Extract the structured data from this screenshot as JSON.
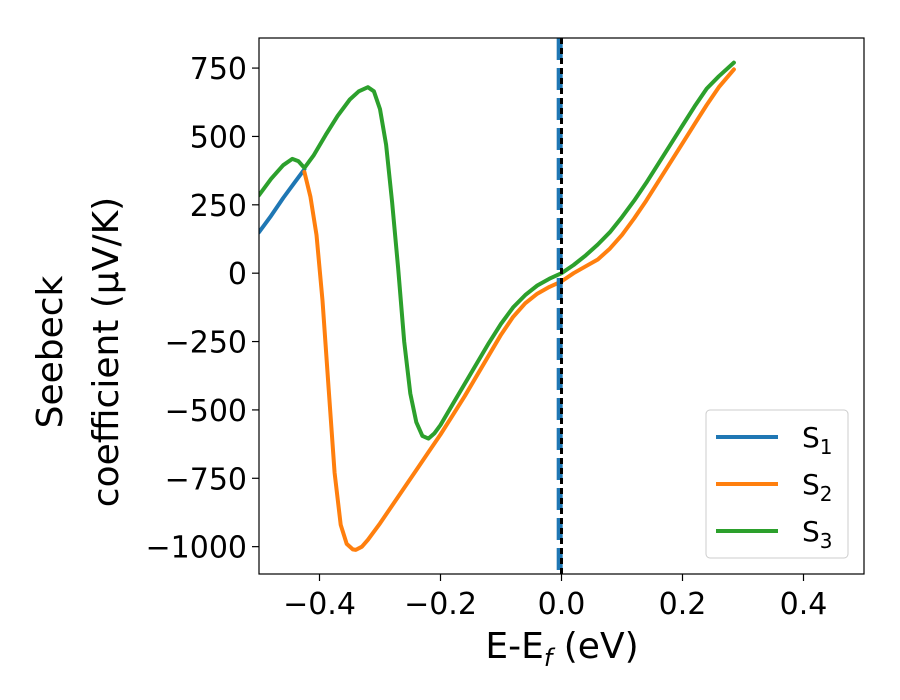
{
  "chart_data": {
    "type": "line",
    "title": "",
    "xlabel": {
      "main": "E-E",
      "sub": "f",
      "tail": " (eV)"
    },
    "ylabel": {
      "line1": "Seebeck",
      "line2": "coefficient  (μV/K)"
    },
    "xlim": [
      -0.5,
      0.5
    ],
    "ylim": [
      -1100,
      860
    ],
    "xticks": [
      -0.4,
      -0.2,
      0.0,
      0.2,
      0.4
    ],
    "xtick_labels": [
      "−0.4",
      "−0.2",
      "0.0",
      "0.2",
      "0.4"
    ],
    "yticks": [
      750,
      500,
      250,
      0,
      -250,
      -500,
      -750,
      -1000
    ],
    "ytick_labels": [
      "750",
      "500",
      "250",
      "0",
      "−250",
      "−500",
      "−750",
      "−1000"
    ],
    "grid": false,
    "legend_position": "lower-right",
    "vertical_lines": [
      {
        "x": 0.0,
        "color": "#000000",
        "style": "dotted"
      },
      {
        "x": -0.003,
        "color": "#1f77b4",
        "style": "dashed"
      }
    ],
    "series": [
      {
        "name": "S",
        "sub": "1",
        "color": "#1f77b4",
        "x": [
          -0.5,
          -0.48,
          -0.46,
          -0.44,
          -0.425
        ],
        "y": [
          150,
          210,
          275,
          335,
          380
        ]
      },
      {
        "name": "S",
        "sub": "2",
        "color": "#ff7f0e",
        "x": [
          -0.425,
          -0.415,
          -0.405,
          -0.395,
          -0.385,
          -0.375,
          -0.365,
          -0.355,
          -0.345,
          -0.34,
          -0.33,
          -0.32,
          -0.3,
          -0.28,
          -0.26,
          -0.24,
          -0.22,
          -0.2,
          -0.18,
          -0.16,
          -0.14,
          -0.12,
          -0.1,
          -0.08,
          -0.06,
          -0.04,
          -0.02,
          0.0,
          0.02,
          0.04,
          0.06,
          0.08,
          0.1,
          0.12,
          0.14,
          0.16,
          0.18,
          0.2,
          0.22,
          0.24,
          0.26,
          0.285
        ],
        "y": [
          370,
          280,
          140,
          -100,
          -420,
          -730,
          -920,
          -990,
          -1010,
          -1012,
          -1000,
          -975,
          -915,
          -850,
          -785,
          -720,
          -655,
          -590,
          -520,
          -450,
          -375,
          -300,
          -225,
          -160,
          -110,
          -75,
          -50,
          -30,
          0,
          25,
          50,
          90,
          140,
          200,
          265,
          335,
          405,
          475,
          545,
          615,
          680,
          745
        ]
      },
      {
        "name": "S",
        "sub": "3",
        "color": "#2ca02c",
        "x": [
          -0.5,
          -0.48,
          -0.46,
          -0.445,
          -0.435,
          -0.425,
          -0.41,
          -0.39,
          -0.37,
          -0.35,
          -0.335,
          -0.32,
          -0.31,
          -0.3,
          -0.29,
          -0.28,
          -0.27,
          -0.26,
          -0.25,
          -0.24,
          -0.23,
          -0.22,
          -0.21,
          -0.2,
          -0.18,
          -0.16,
          -0.14,
          -0.12,
          -0.1,
          -0.08,
          -0.06,
          -0.04,
          -0.02,
          0.0,
          0.02,
          0.04,
          0.06,
          0.08,
          0.1,
          0.12,
          0.14,
          0.16,
          0.18,
          0.2,
          0.22,
          0.24,
          0.26,
          0.285
        ],
        "y": [
          285,
          345,
          395,
          418,
          410,
          385,
          430,
          505,
          575,
          635,
          665,
          680,
          665,
          600,
          470,
          260,
          20,
          -250,
          -440,
          -545,
          -595,
          -605,
          -585,
          -555,
          -480,
          -405,
          -330,
          -255,
          -185,
          -125,
          -80,
          -45,
          -20,
          0,
          30,
          65,
          105,
          150,
          205,
          265,
          330,
          400,
          470,
          540,
          610,
          675,
          720,
          770
        ]
      }
    ]
  }
}
